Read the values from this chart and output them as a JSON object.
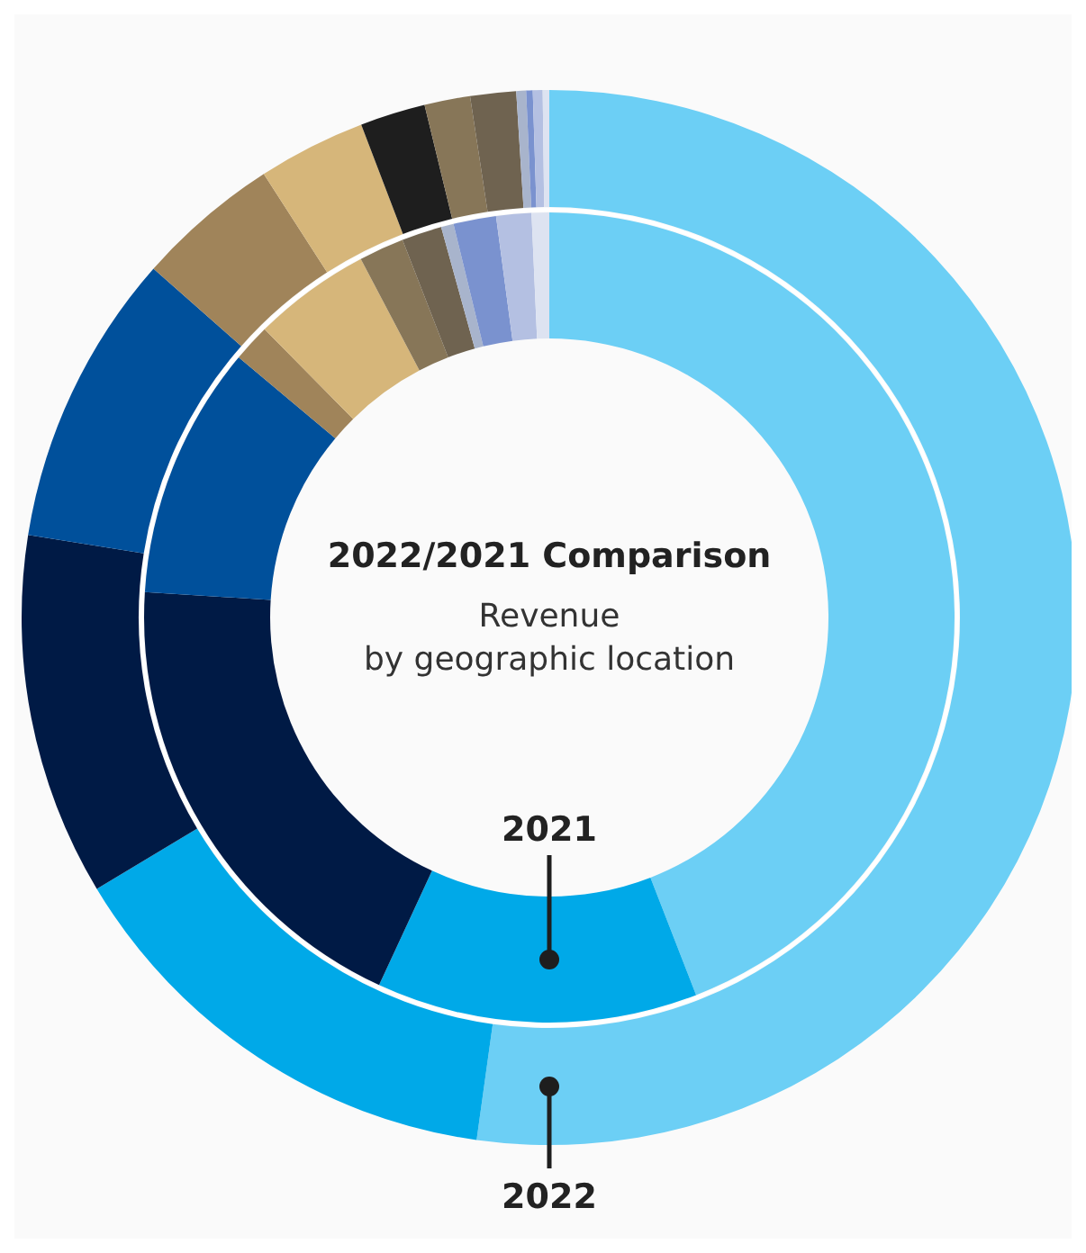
{
  "chart_data": {
    "type": "donut",
    "title": "2022/2021 Comparison",
    "subtitle": "Revenue by geographic location",
    "categories": [
      null,
      null,
      null,
      null,
      null,
      null,
      null,
      null,
      null,
      null,
      null,
      null,
      null
    ],
    "colors": [
      "#6ccff5",
      "#00a9e8",
      "#001a45",
      "#00509b",
      "#a0845a",
      "#d6b67a",
      "#1e1e1e",
      "#877658",
      "#6f6350",
      "#a8b4cc",
      "#7a92cf",
      "#b4c0e2",
      "#dde3f1"
    ],
    "series": [
      {
        "name": "2022",
        "values": [
          52.2,
          14.2,
          11.1,
          9.0,
          4.4,
          3.3,
          2.0,
          1.4,
          1.4,
          0.3,
          0.2,
          0.3,
          0.2
        ]
      },
      {
        "name": "2021",
        "values": [
          44.1,
          12.8,
          19.1,
          10.1,
          1.5,
          4.7,
          0,
          1.8,
          1.6,
          0.5,
          1.7,
          1.4,
          0.7
        ]
      }
    ]
  }
}
